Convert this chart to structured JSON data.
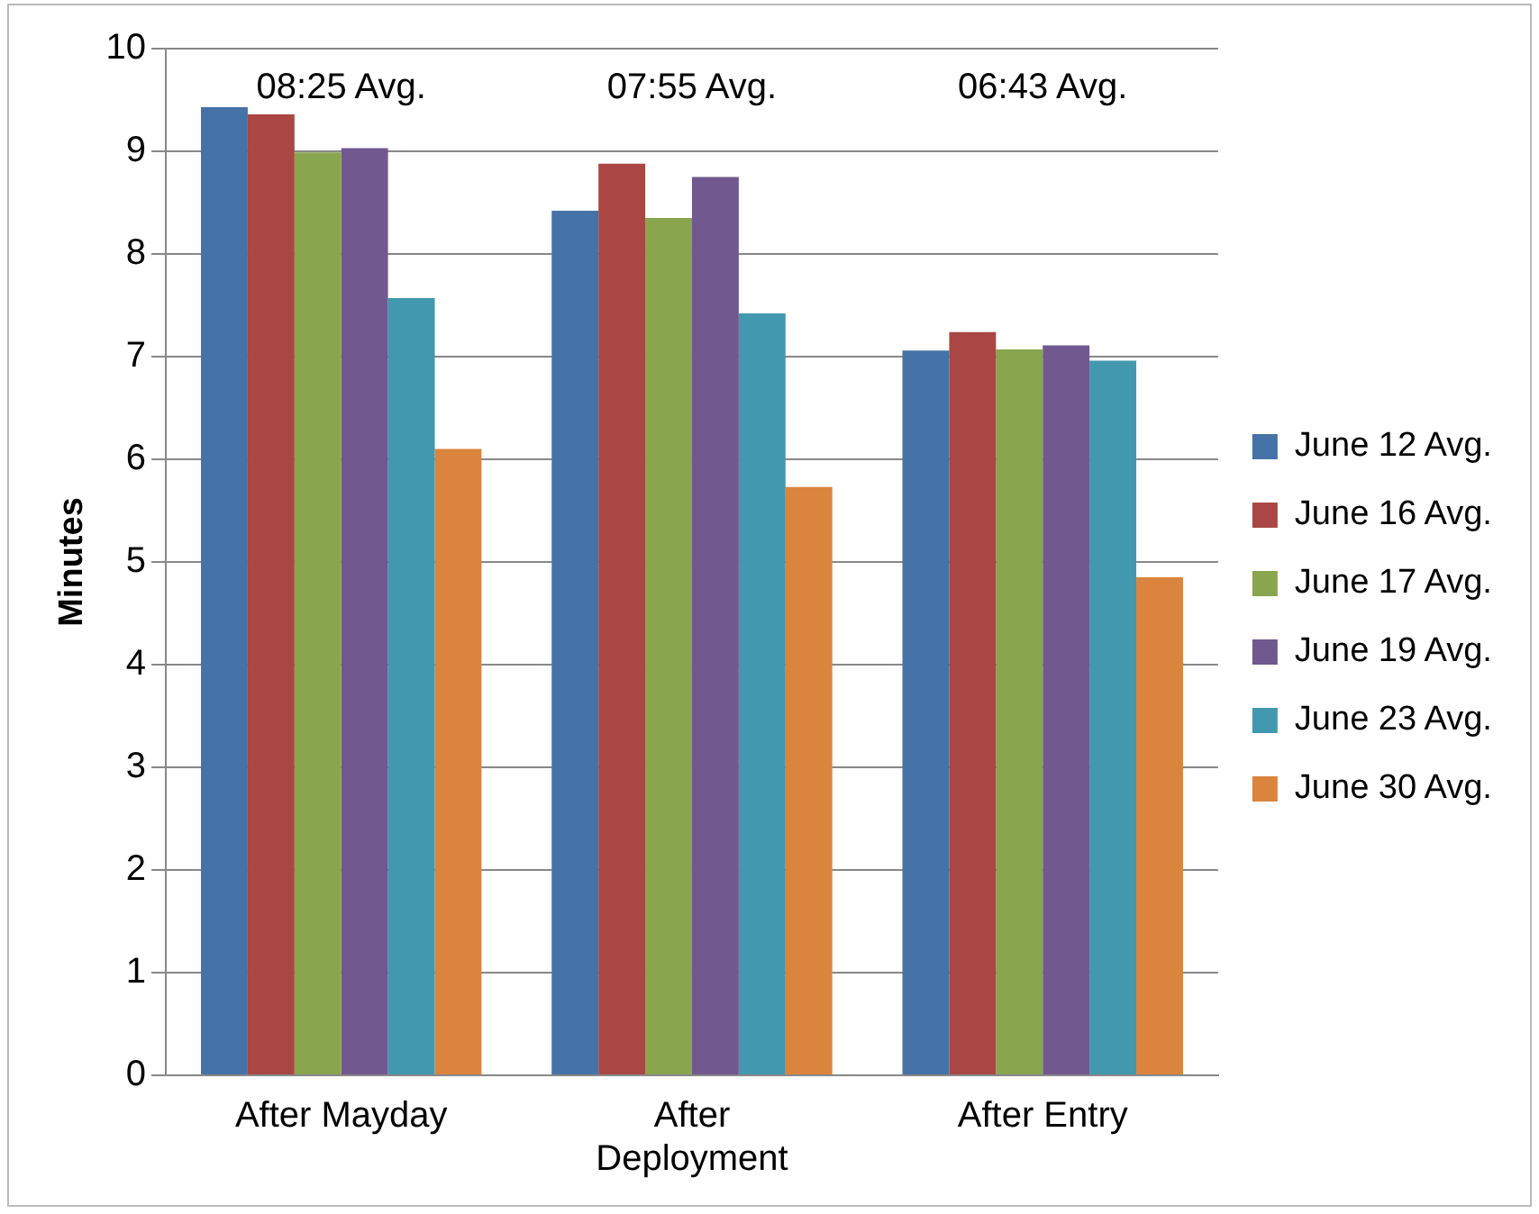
{
  "chart_data": {
    "type": "bar",
    "ylabel": "Minutes",
    "categories": [
      "After Mayday",
      "After Deployment",
      "After Entry"
    ],
    "series": [
      {
        "name": "June 12 Avg.",
        "color": "#4572a7",
        "values": [
          9.43,
          8.42,
          7.06
        ]
      },
      {
        "name": "June 16 Avg.",
        "color": "#aa4643",
        "values": [
          9.36,
          8.88,
          7.24
        ]
      },
      {
        "name": "June 17 Avg.",
        "color": "#89a54e",
        "values": [
          8.99,
          8.35,
          7.07
        ]
      },
      {
        "name": "June 19 Avg.",
        "color": "#71588f",
        "values": [
          9.03,
          8.75,
          7.11
        ]
      },
      {
        "name": "June 23 Avg.",
        "color": "#4198af",
        "values": [
          7.57,
          7.42,
          6.96
        ]
      },
      {
        "name": "June 30 Avg.",
        "color": "#db843d",
        "values": [
          6.1,
          5.73,
          4.85
        ]
      }
    ],
    "ylim": [
      0,
      10
    ],
    "yticks": [
      0,
      1,
      2,
      3,
      4,
      5,
      6,
      7,
      8,
      9,
      10
    ],
    "grid": "y",
    "legend": "right",
    "annotations": [
      "08:25 Avg.",
      "07:55 Avg.",
      "06:43 Avg."
    ]
  }
}
